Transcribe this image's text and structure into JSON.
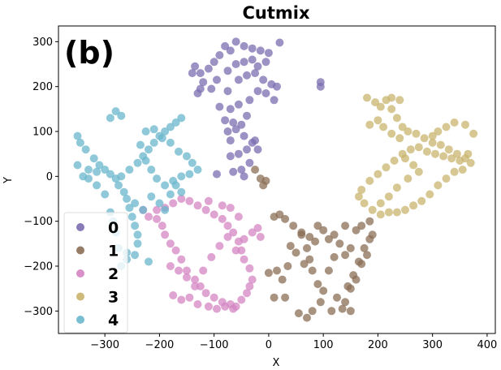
{
  "chart_data": {
    "type": "scatter",
    "title": "Cutmix",
    "panel_label": "(b)",
    "xlabel": "X",
    "ylabel": "Y",
    "xlim": [
      -385,
      415
    ],
    "ylim": [
      -350,
      335
    ],
    "xticks": [
      -300,
      -200,
      -100,
      0,
      100,
      200,
      300,
      400
    ],
    "yticks": [
      -300,
      -200,
      -100,
      0,
      100,
      200,
      300
    ],
    "xtick_labels": [
      "−300",
      "−200",
      "−100",
      "0",
      "100",
      "200",
      "300",
      "400"
    ],
    "ytick_labels": [
      "−300",
      "−200",
      "−100",
      "0",
      "100",
      "200",
      "300"
    ],
    "grid": false,
    "legend_position": "lower-left",
    "series": [
      {
        "name": "0",
        "color": "#7b6db0",
        "points": [
          [
            -60,
            300
          ],
          [
            -45,
            290
          ],
          [
            -30,
            285
          ],
          [
            -15,
            280
          ],
          [
            0,
            275
          ],
          [
            20,
            298
          ],
          [
            -80,
            290
          ],
          [
            -70,
            280
          ],
          [
            -90,
            270
          ],
          [
            -100,
            255
          ],
          [
            -110,
            240
          ],
          [
            -125,
            230
          ],
          [
            -135,
            245
          ],
          [
            -140,
            230
          ],
          [
            -120,
            210
          ],
          [
            -95,
            215
          ],
          [
            -75,
            190
          ],
          [
            -55,
            215
          ],
          [
            -40,
            225
          ],
          [
            -25,
            230
          ],
          [
            -10,
            215
          ],
          [
            5,
            205
          ],
          [
            15,
            200
          ],
          [
            10,
            170
          ],
          [
            -5,
            185
          ],
          [
            -20,
            190
          ],
          [
            -35,
            170
          ],
          [
            -55,
            160
          ],
          [
            -70,
            150
          ],
          [
            -90,
            155
          ],
          [
            -105,
            195
          ],
          [
            -125,
            195
          ],
          [
            -130,
            185
          ],
          [
            -75,
            235
          ],
          [
            -60,
            250
          ],
          [
            -45,
            255
          ],
          [
            -30,
            260
          ],
          [
            -20,
            245
          ],
          [
            -5,
            255
          ],
          [
            -80,
            125
          ],
          [
            -65,
            120
          ],
          [
            -50,
            115
          ],
          [
            -40,
            135
          ],
          [
            -60,
            105
          ],
          [
            -75,
            100
          ],
          [
            -45,
            90
          ],
          [
            -70,
            80
          ],
          [
            -30,
            75
          ],
          [
            -20,
            60
          ],
          [
            -40,
            60
          ],
          [
            -55,
            50
          ],
          [
            -70,
            45
          ],
          [
            -35,
            30
          ],
          [
            -50,
            15
          ],
          [
            -65,
            10
          ],
          [
            -45,
            0
          ],
          [
            -95,
            5
          ],
          [
            95,
            210
          ],
          [
            95,
            200
          ],
          [
            -25,
            80
          ]
        ]
      },
      {
        "name": "1",
        "color": "#8b6e55",
        "points": [
          [
            -25,
            15
          ],
          [
            -15,
            -5
          ],
          [
            -10,
            -20
          ],
          [
            10,
            -90
          ],
          [
            20,
            -85
          ],
          [
            30,
            -95
          ],
          [
            45,
            -110
          ],
          [
            60,
            -125
          ],
          [
            75,
            -135
          ],
          [
            90,
            -110
          ],
          [
            100,
            -120
          ],
          [
            110,
            -140
          ],
          [
            120,
            -130
          ],
          [
            85,
            -145
          ],
          [
            70,
            -160
          ],
          [
            60,
            -130
          ],
          [
            40,
            -155
          ],
          [
            25,
            -230
          ],
          [
            15,
            -210
          ],
          [
            10,
            -270
          ],
          [
            0,
            -215
          ],
          [
            30,
            -270
          ],
          [
            35,
            -200
          ],
          [
            50,
            -170
          ],
          [
            65,
            -195
          ],
          [
            75,
            -185
          ],
          [
            80,
            -210
          ],
          [
            90,
            -240
          ],
          [
            100,
            -255
          ],
          [
            110,
            -210
          ],
          [
            95,
            -280
          ],
          [
            80,
            -300
          ],
          [
            70,
            -315
          ],
          [
            55,
            -305
          ],
          [
            115,
            -300
          ],
          [
            125,
            -270
          ],
          [
            140,
            -280
          ],
          [
            150,
            -250
          ],
          [
            160,
            -230
          ],
          [
            170,
            -195
          ],
          [
            175,
            -160
          ],
          [
            185,
            -140
          ],
          [
            180,
            -175
          ],
          [
            165,
            -190
          ],
          [
            155,
            -220
          ],
          [
            145,
            -245
          ],
          [
            150,
            -300
          ],
          [
            135,
            -295
          ],
          [
            140,
            -175
          ],
          [
            150,
            -160
          ],
          [
            130,
            -150
          ],
          [
            120,
            -180
          ],
          [
            160,
            -120
          ],
          [
            170,
            -110
          ],
          [
            185,
            -100
          ],
          [
            190,
            -130
          ],
          [
            140,
            -110
          ],
          [
            -5,
            -10
          ]
        ]
      },
      {
        "name": "2",
        "color": "#d485c2",
        "points": [
          [
            -230,
            -75
          ],
          [
            -220,
            -90
          ],
          [
            -205,
            -95
          ],
          [
            -195,
            -110
          ],
          [
            -190,
            -130
          ],
          [
            -180,
            -150
          ],
          [
            -170,
            -165
          ],
          [
            -160,
            -185
          ],
          [
            -150,
            -210
          ],
          [
            -135,
            -230
          ],
          [
            -125,
            -245
          ],
          [
            -115,
            -260
          ],
          [
            -100,
            -270
          ],
          [
            -85,
            -280
          ],
          [
            -70,
            -285
          ],
          [
            -60,
            -290
          ],
          [
            -50,
            -275
          ],
          [
            -40,
            -260
          ],
          [
            -35,
            -245
          ],
          [
            -30,
            -230
          ],
          [
            -35,
            -205
          ],
          [
            -45,
            -185
          ],
          [
            -50,
            -165
          ],
          [
            -55,
            -145
          ],
          [
            -65,
            -125
          ],
          [
            -75,
            -110
          ],
          [
            -85,
            -95
          ],
          [
            -100,
            -85
          ],
          [
            -115,
            -75
          ],
          [
            -130,
            -65
          ],
          [
            -145,
            -55
          ],
          [
            -160,
            -50
          ],
          [
            -175,
            -60
          ],
          [
            -190,
            -70
          ],
          [
            -205,
            -75
          ],
          [
            -175,
            -265
          ],
          [
            -160,
            -275
          ],
          [
            -145,
            -270
          ],
          [
            -130,
            -285
          ],
          [
            -110,
            -290
          ],
          [
            -95,
            -295
          ],
          [
            -80,
            -290
          ],
          [
            -65,
            -295
          ],
          [
            -180,
            -200
          ],
          [
            -165,
            -210
          ],
          [
            -150,
            -225
          ],
          [
            -135,
            -245
          ],
          [
            -120,
            -210
          ],
          [
            -105,
            -180
          ],
          [
            -90,
            -155
          ],
          [
            -75,
            -135
          ],
          [
            -60,
            -165
          ],
          [
            -45,
            -140
          ],
          [
            -30,
            -125
          ],
          [
            -20,
            -115
          ],
          [
            -15,
            -135
          ],
          [
            -70,
            -70
          ],
          [
            -55,
            -90
          ],
          [
            -85,
            -65
          ],
          [
            -110,
            -55
          ]
        ]
      },
      {
        "name": "3",
        "color": "#c9b46e",
        "points": [
          [
            180,
            175
          ],
          [
            195,
            165
          ],
          [
            205,
            155
          ],
          [
            215,
            170
          ],
          [
            225,
            150
          ],
          [
            235,
            130
          ],
          [
            245,
            110
          ],
          [
            255,
            100
          ],
          [
            270,
            95
          ],
          [
            285,
            85
          ],
          [
            300,
            75
          ],
          [
            315,
            70
          ],
          [
            330,
            60
          ],
          [
            345,
            50
          ],
          [
            360,
            40
          ],
          [
            370,
            30
          ],
          [
            355,
            15
          ],
          [
            340,
            10
          ],
          [
            325,
            -5
          ],
          [
            310,
            -20
          ],
          [
            295,
            -40
          ],
          [
            280,
            -55
          ],
          [
            265,
            -65
          ],
          [
            250,
            -75
          ],
          [
            235,
            -80
          ],
          [
            220,
            -80
          ],
          [
            205,
            -85
          ],
          [
            190,
            -75
          ],
          [
            175,
            -60
          ],
          [
            165,
            -45
          ],
          [
            170,
            -30
          ],
          [
            185,
            -10
          ],
          [
            200,
            5
          ],
          [
            215,
            20
          ],
          [
            230,
            35
          ],
          [
            245,
            50
          ],
          [
            260,
            60
          ],
          [
            275,
            65
          ],
          [
            290,
            55
          ],
          [
            305,
            50
          ],
          [
            320,
            45
          ],
          [
            335,
            40
          ],
          [
            350,
            35
          ],
          [
            365,
            50
          ],
          [
            375,
            95
          ],
          [
            360,
            115
          ],
          [
            340,
            120
          ],
          [
            325,
            110
          ],
          [
            310,
            100
          ],
          [
            300,
            90
          ],
          [
            200,
            125
          ],
          [
            185,
            115
          ],
          [
            210,
            110
          ],
          [
            225,
            95
          ],
          [
            240,
            85
          ],
          [
            250,
            40
          ],
          [
            265,
            25
          ],
          [
            275,
            10
          ],
          [
            255,
            -5
          ],
          [
            235,
            -25
          ],
          [
            220,
            -45
          ],
          [
            205,
            -60
          ],
          [
            240,
            170
          ],
          [
            225,
            175
          ]
        ]
      },
      {
        "name": "4",
        "color": "#6ab7cc",
        "points": [
          [
            -290,
            130
          ],
          [
            -280,
            145
          ],
          [
            -270,
            135
          ],
          [
            -350,
            90
          ],
          [
            -345,
            75
          ],
          [
            -335,
            60
          ],
          [
            -320,
            40
          ],
          [
            -310,
            25
          ],
          [
            -300,
            15
          ],
          [
            -290,
            5
          ],
          [
            -280,
            -5
          ],
          [
            -275,
            -20
          ],
          [
            -265,
            -35
          ],
          [
            -260,
            -50
          ],
          [
            -255,
            -70
          ],
          [
            -250,
            -90
          ],
          [
            -245,
            -110
          ],
          [
            -240,
            -130
          ],
          [
            -240,
            -150
          ],
          [
            -245,
            -175
          ],
          [
            -260,
            -185
          ],
          [
            -270,
            -200
          ],
          [
            -275,
            -160
          ],
          [
            -280,
            -125
          ],
          [
            -285,
            -100
          ],
          [
            -290,
            -80
          ],
          [
            -330,
            -5
          ],
          [
            -315,
            -20
          ],
          [
            -300,
            -40
          ],
          [
            -350,
            25
          ],
          [
            -340,
            0
          ],
          [
            -330,
            15
          ],
          [
            -315,
            10
          ],
          [
            -270,
            0
          ],
          [
            -255,
            15
          ],
          [
            -240,
            30
          ],
          [
            -230,
            45
          ],
          [
            -220,
            60
          ],
          [
            -210,
            75
          ],
          [
            -200,
            90
          ],
          [
            -190,
            100
          ],
          [
            -180,
            110
          ],
          [
            -170,
            120
          ],
          [
            -160,
            130
          ],
          [
            -150,
            45
          ],
          [
            -140,
            30
          ],
          [
            -130,
            15
          ],
          [
            -145,
            5
          ],
          [
            -160,
            0
          ],
          [
            -175,
            -10
          ],
          [
            -190,
            -20
          ],
          [
            -205,
            -5
          ],
          [
            -215,
            15
          ],
          [
            -225,
            35
          ],
          [
            -215,
            -45
          ],
          [
            -200,
            -60
          ],
          [
            -190,
            -75
          ],
          [
            -180,
            -40
          ],
          [
            -170,
            -20
          ],
          [
            -160,
            -35
          ],
          [
            -165,
            55
          ],
          [
            -180,
            75
          ],
          [
            -195,
            85
          ],
          [
            -210,
            105
          ],
          [
            -225,
            100
          ],
          [
            -235,
            70
          ],
          [
            -245,
            -60
          ],
          [
            -230,
            -75
          ],
          [
            -220,
            -190
          ],
          [
            -260,
            -170
          ]
        ]
      }
    ]
  }
}
